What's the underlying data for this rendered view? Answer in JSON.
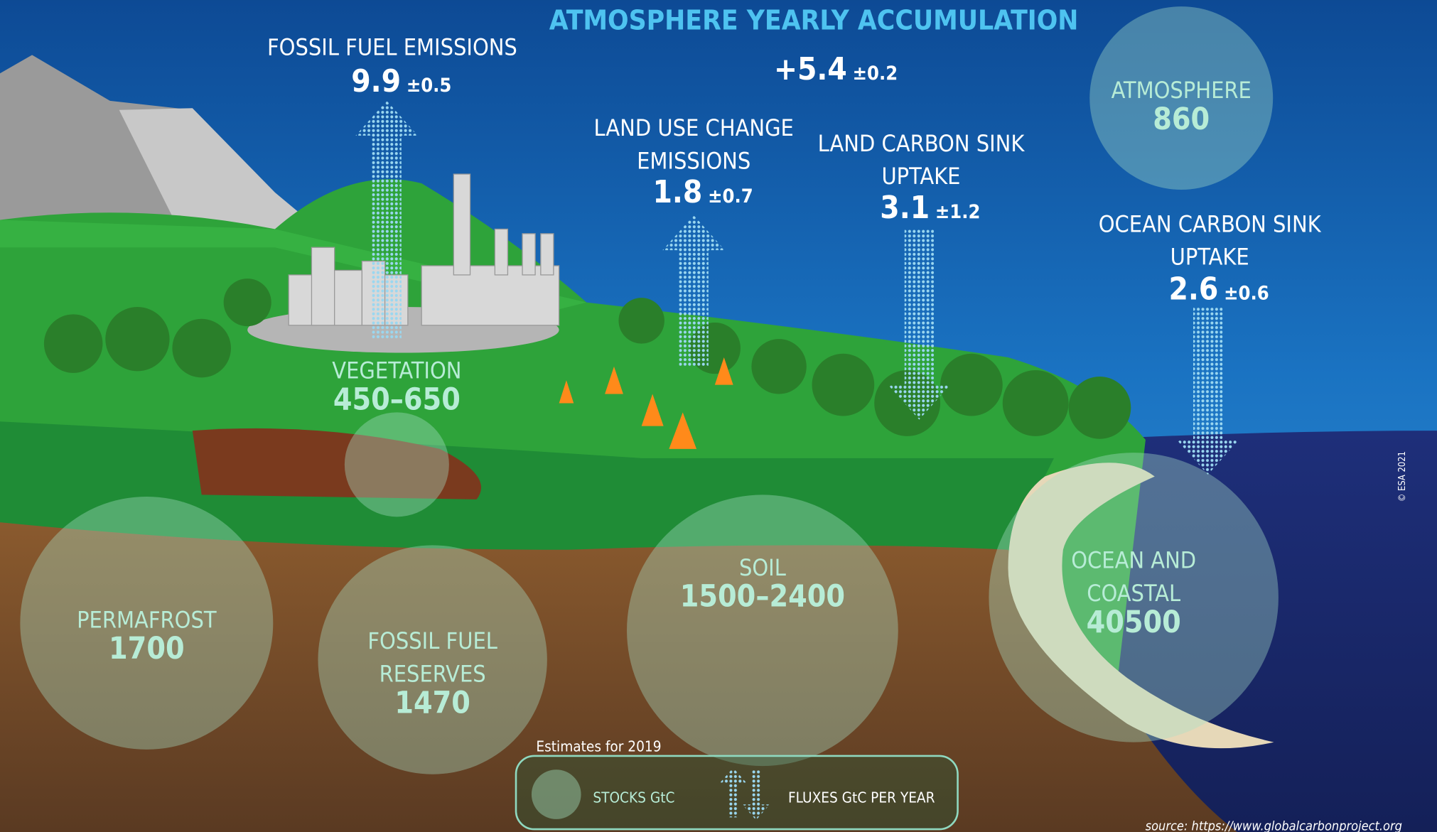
{
  "title": "ATMOSPHERE YEARLY ACCUMULATION",
  "accumulation": {
    "value": "+5.4",
    "uncertainty": "±0.2"
  },
  "fluxes": [
    {
      "label": [
        "FOSSIL FUEL EMISSIONS"
      ],
      "value": "9.9",
      "uncertainty": "±0.5"
    },
    {
      "label": [
        "LAND USE CHANGE",
        "EMISSIONS"
      ],
      "value": "1.8",
      "uncertainty": "±0.7"
    },
    {
      "label": [
        "LAND CARBON SINK",
        "UPTAKE"
      ],
      "value": "3.1",
      "uncertainty": "±1.2"
    },
    {
      "label": [
        "OCEAN CARBON SINK",
        "UPTAKE"
      ],
      "value": "2.6",
      "uncertainty": "±0.6"
    }
  ],
  "stocks": [
    {
      "label": [
        "ATMOSPHERE"
      ],
      "value": "860"
    },
    {
      "label": [
        "VEGETATION"
      ],
      "value": "450–650"
    },
    {
      "label": [
        "PERMAFROST"
      ],
      "value": "1700"
    },
    {
      "label": [
        "FOSSIL FUEL",
        "RESERVES"
      ],
      "value": "1470"
    },
    {
      "label": [
        "SOIL"
      ],
      "value": "1500–2400"
    },
    {
      "label": [
        "OCEAN AND",
        "COASTAL"
      ],
      "value": "40500"
    }
  ],
  "legend": {
    "caption": "Estimates for 2019",
    "stocks": "STOCKS GtC",
    "fluxes": "FLUXES GtC PER YEAR"
  },
  "copyright": "© ESA 2021",
  "source": "source: https://www.globalcarbonproject.org"
}
